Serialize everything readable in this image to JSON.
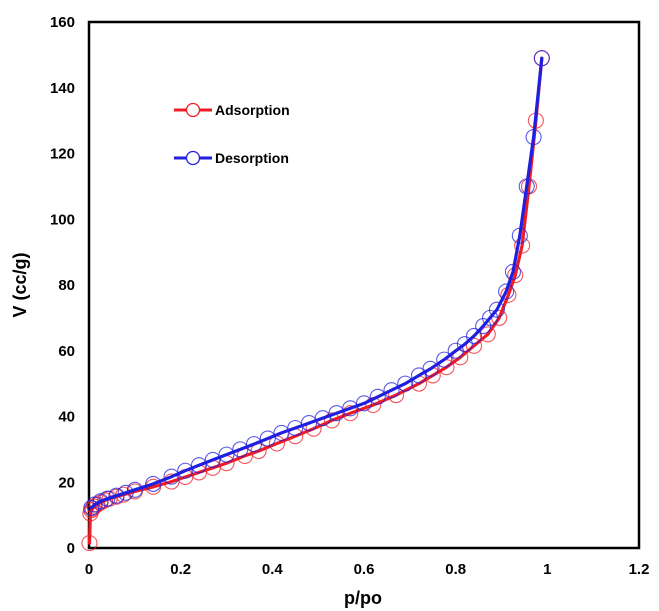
{
  "chart_data": {
    "type": "line",
    "xlabel": "p/po",
    "ylabel": "V (cc/g)",
    "xlim": [
      0,
      1.2
    ],
    "ylim": [
      0,
      160
    ],
    "x_ticks": [
      0,
      0.2,
      0.4,
      0.6,
      0.8,
      1,
      1.2
    ],
    "x_tick_labels": [
      "0",
      "0.2",
      "0.4",
      "0.6",
      "0.8",
      "1",
      "1.2"
    ],
    "y_ticks": [
      0,
      20,
      40,
      60,
      80,
      100,
      120,
      140,
      160
    ],
    "y_tick_labels": [
      "0",
      "20",
      "40",
      "60",
      "80",
      "100",
      "120",
      "140",
      "160"
    ],
    "grid": false,
    "legend_position": "upper-left",
    "series": [
      {
        "name": "Adsorption",
        "color": "#ee1c25",
        "x": [
          0.001,
          0.003,
          0.005,
          0.008,
          0.012,
          0.018,
          0.025,
          0.035,
          0.045,
          0.06,
          0.075,
          0.1,
          0.14,
          0.18,
          0.21,
          0.24,
          0.27,
          0.3,
          0.34,
          0.37,
          0.41,
          0.45,
          0.49,
          0.53,
          0.57,
          0.62,
          0.67,
          0.72,
          0.75,
          0.78,
          0.81,
          0.84,
          0.87,
          0.895,
          0.915,
          0.93,
          0.945,
          0.96,
          0.975,
          0.988
        ],
        "y": [
          1.5,
          10.5,
          11.5,
          12.0,
          12.6,
          13.2,
          13.8,
          14.5,
          15.0,
          15.6,
          16.2,
          17.2,
          18.6,
          20.2,
          21.6,
          23.0,
          24.4,
          25.8,
          28.0,
          29.5,
          31.8,
          34.0,
          36.3,
          38.8,
          41.0,
          43.5,
          46.5,
          50.0,
          52.5,
          55.0,
          58.0,
          61.5,
          65.0,
          70.0,
          77.0,
          83.0,
          92.0,
          110.0,
          130.0,
          149.0
        ]
      },
      {
        "name": "Desorption",
        "color": "#1f1fe0",
        "x": [
          0.988,
          0.97,
          0.955,
          0.94,
          0.925,
          0.91,
          0.89,
          0.875,
          0.86,
          0.84,
          0.82,
          0.8,
          0.775,
          0.745,
          0.72,
          0.69,
          0.66,
          0.63,
          0.6,
          0.57,
          0.54,
          0.51,
          0.48,
          0.45,
          0.42,
          0.39,
          0.36,
          0.33,
          0.3,
          0.27,
          0.24,
          0.21,
          0.18,
          0.14,
          0.1,
          0.08,
          0.06,
          0.04,
          0.025,
          0.012,
          0.005
        ],
        "y": [
          149.0,
          125.0,
          110.0,
          95.0,
          84.0,
          78.0,
          72.5,
          70.0,
          67.5,
          64.5,
          62.0,
          60.0,
          57.3,
          54.5,
          52.5,
          50.0,
          48.0,
          46.0,
          44.0,
          42.5,
          41.0,
          39.5,
          38.0,
          36.5,
          35.0,
          33.3,
          31.6,
          30.0,
          28.4,
          26.8,
          25.2,
          23.5,
          21.7,
          19.5,
          17.7,
          16.8,
          15.9,
          15.0,
          14.2,
          13.2,
          12.2
        ]
      }
    ]
  }
}
